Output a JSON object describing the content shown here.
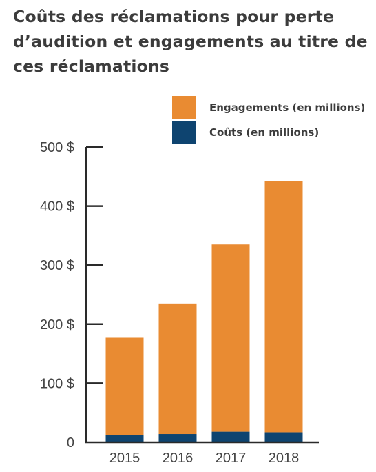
{
  "colors": {
    "engagements": "#E98B32",
    "couts": "#0E4470",
    "axis": "#2a2a2a",
    "text": "#3c3c3c"
  },
  "chart_data": {
    "type": "bar",
    "stacked": true,
    "title": "Coûts des réclamations pour perte d’audition et engagements au titre de ces réclamations",
    "categories": [
      "2015",
      "2016",
      "2017",
      "2018"
    ],
    "series": [
      {
        "name": "Coûts (en millions)",
        "values": [
          12,
          14,
          18,
          17
        ]
      },
      {
        "name": "Engagements (en millions)",
        "values": [
          165,
          221,
          317,
          425
        ]
      }
    ],
    "y_ticks": [
      "0",
      "100 $",
      "200 $",
      "300 $",
      "400 $",
      "500 $"
    ],
    "ylim": [
      0,
      500
    ],
    "legend_position": "top-right",
    "grid": false
  }
}
